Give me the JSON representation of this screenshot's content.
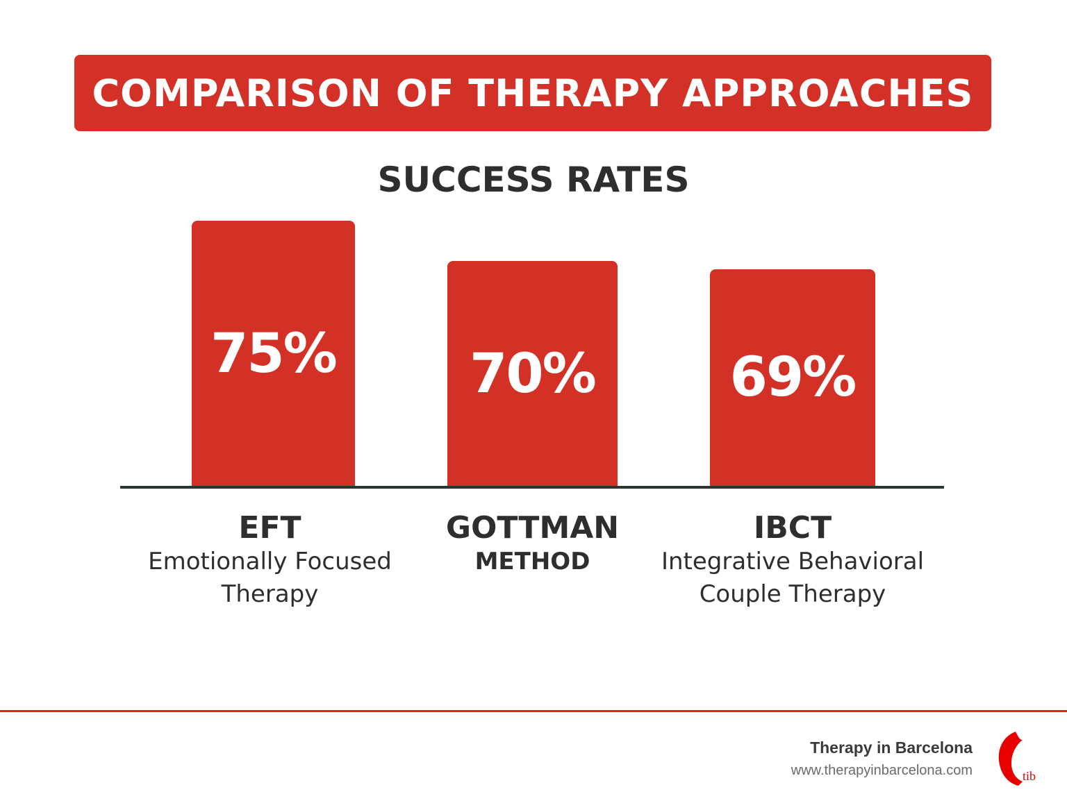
{
  "title": "COMPARISON OF THERAPY APPROACHES",
  "chart_data": {
    "type": "bar",
    "title": "SUCCESS RATES",
    "categories": [
      "EFT",
      "GOTTMAN",
      "IBCT"
    ],
    "category_descriptions": [
      "Emotionally Focused Therapy",
      "METHOD",
      "Integrative Behavioral Couple Therapy"
    ],
    "values": [
      75,
      70,
      69
    ],
    "data_labels": [
      "75%",
      "70%",
      "69%"
    ],
    "ylabel": "",
    "xlabel": "",
    "bar_color": "#d33125"
  },
  "footer": {
    "brand": "Therapy in Barcelona",
    "url": "www.therapyinbarcelona.com",
    "logo_text": "tib"
  }
}
